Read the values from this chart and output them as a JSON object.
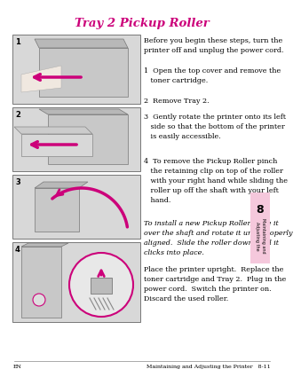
{
  "title": "Tray 2 Pickup Roller",
  "title_color": "#cc007a",
  "bg_color": "#ffffff",
  "tab_color": "#f5c8dc",
  "footer_left": "EN",
  "footer_right": "Maintaining and Adjusting the Printer   8-11",
  "intro_text": "Before you begin these steps, turn the\nprinter off and unplug the power cord.",
  "step1": "1  Open the top cover and remove the\n   toner cartridge.",
  "step2": "2  Remove Tray 2.",
  "step3": "3  Gently rotate the printer onto its left\n   side so that the bottom of the printer\n   is easily accessible.",
  "step4": "4  To remove the Pickup Roller pinch\n   the retaining clip on top of the roller\n   with your right hand while sliding the\n   roller up off the shaft with your left\n   hand.",
  "italic_text": "To install a new Pickup Roller, slide it\nover the shaft and rotate it until properly\naligned.  Slide the roller down until it\nclicks into place.",
  "final_text": "Place the printer upright.  Replace the\ntoner cartridge and Tray 2.  Plug in the\npower cord.  Switch the printer on.\nDiscard the used roller.",
  "arrow_color": "#cc007a",
  "box_fill": "#d8d8d8",
  "box_edge": "#666666",
  "img_fill": "#e8e8e8",
  "tab_num": "8",
  "tab_sub": "Maintaining and\nAdjusting the"
}
